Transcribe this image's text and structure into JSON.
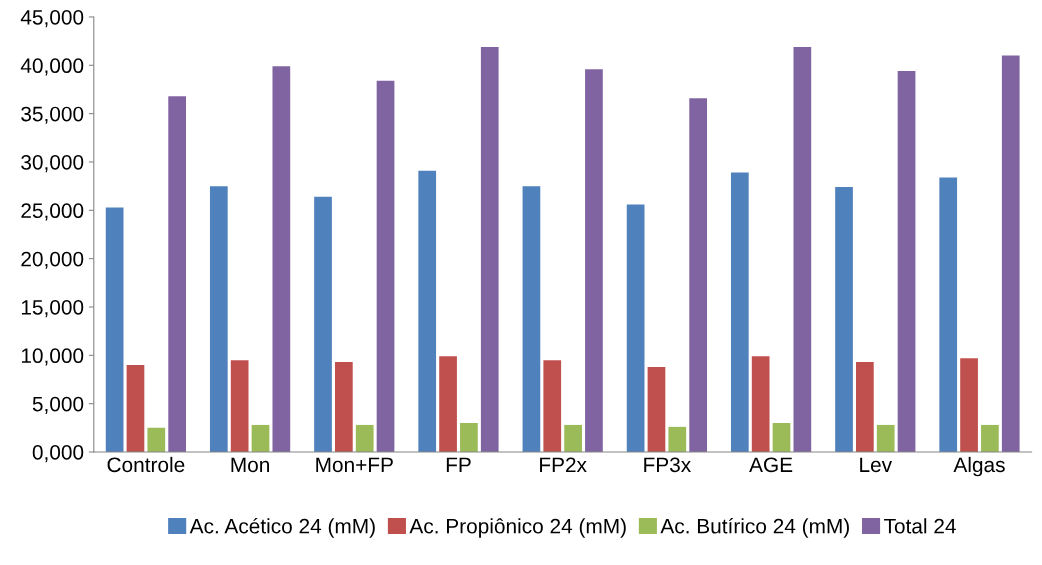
{
  "chart_data": {
    "type": "bar",
    "categories": [
      "Controle",
      "Mon",
      "Mon+FP",
      "FP",
      "FP2x",
      "FP3x",
      "AGE",
      "Lev",
      "Algas"
    ],
    "series": [
      {
        "name": "Ac. Acético 24 (mM)",
        "color": "#4f81bd",
        "values": [
          25300,
          27500,
          26400,
          29100,
          27500,
          25600,
          28900,
          27400,
          28400
        ]
      },
      {
        "name": "Ac. Propiônico 24 (mM)",
        "color": "#c0504d",
        "values": [
          9000,
          9500,
          9300,
          9900,
          9500,
          8800,
          9900,
          9300,
          9700
        ]
      },
      {
        "name": "Ac. Butírico 24 (mM)",
        "color": "#9bbb59",
        "values": [
          2500,
          2800,
          2800,
          3000,
          2800,
          2600,
          3000,
          2800,
          2800
        ]
      },
      {
        "name": "Total 24",
        "color": "#8064a2",
        "values": [
          36800,
          39900,
          38400,
          41900,
          39600,
          36600,
          41900,
          39400,
          41000
        ]
      }
    ],
    "ylim": [
      0,
      45000
    ],
    "yticks": [
      {
        "value": 0,
        "label": "0,000"
      },
      {
        "value": 5000,
        "label": "5,000"
      },
      {
        "value": 10000,
        "label": "10,000"
      },
      {
        "value": 15000,
        "label": "15,000"
      },
      {
        "value": 20000,
        "label": "20,000"
      },
      {
        "value": 25000,
        "label": "25,000"
      },
      {
        "value": 30000,
        "label": "30,000"
      },
      {
        "value": 35000,
        "label": "35,000"
      },
      {
        "value": 40000,
        "label": "40,000"
      },
      {
        "value": 45000,
        "label": "45,000"
      }
    ],
    "grid": false,
    "legend": "bottom"
  }
}
